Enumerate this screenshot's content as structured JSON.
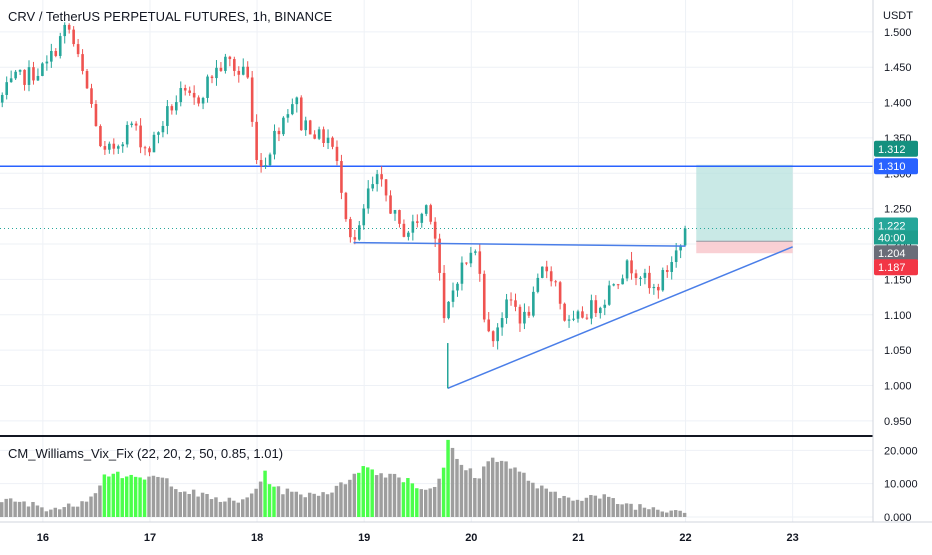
{
  "header": {
    "title": "CRV / TetherUS PERPETUAL FUTURES, 1h, BINANCE",
    "indicator": "CM_Williams_Vix_Fix (22, 20, 2, 50, 0.85, 1.01)"
  },
  "axis": {
    "currency": "USDT",
    "price_ticks": [
      "1.500",
      "1.450",
      "1.400",
      "1.350",
      "1.300",
      "1.250",
      "1.200",
      "1.150",
      "1.100",
      "1.050",
      "1.000",
      "0.950"
    ],
    "price_tick_values": [
      1.5,
      1.45,
      1.4,
      1.35,
      1.3,
      1.25,
      1.2,
      1.15,
      1.1,
      1.05,
      1.0,
      0.95
    ],
    "indicator_ticks": [
      "20.000",
      "10.000",
      "0.000"
    ],
    "indicator_tick_values": [
      20,
      10,
      0
    ],
    "day_ticks": [
      "16",
      "17",
      "18",
      "19",
      "20",
      "21",
      "22",
      "23"
    ],
    "day_tick_values": [
      16,
      17,
      18,
      19,
      20,
      21,
      22,
      23
    ]
  },
  "price_labels": {
    "target": "1.312",
    "resistance": "1.310",
    "last": "1.222",
    "countdown": "40:00",
    "entry": "1.204",
    "stop": "1.187"
  },
  "colors": {
    "up": "#26a69a",
    "down": "#ef5350",
    "resistance_line": "#2962ff",
    "trendline": "#4a7ee8",
    "target_zone": "#b2dfdb",
    "stop_zone": "#f8c8cc",
    "vix_normal": "#9e9e9e",
    "vix_spike": "#4cff4c"
  },
  "chart_data": [
    {
      "type": "candlestick",
      "title": "CRV / TetherUS PERPETUAL FUTURES, 1h, BINANCE",
      "x_unit": "day",
      "xlim": [
        15.6,
        23.75
      ],
      "ylim": [
        0.93,
        1.545
      ],
      "y_unit": "USDT",
      "last_price": 1.222,
      "anchors": [
        [
          15.6,
          1.4
        ],
        [
          15.75,
          1.43
        ],
        [
          15.9,
          1.44
        ],
        [
          16.05,
          1.45
        ],
        [
          16.15,
          1.48
        ],
        [
          16.25,
          1.51
        ],
        [
          16.33,
          1.47
        ],
        [
          16.45,
          1.41
        ],
        [
          16.52,
          1.37
        ],
        [
          16.57,
          1.32
        ],
        [
          16.7,
          1.34
        ],
        [
          16.85,
          1.37
        ],
        [
          17.0,
          1.33
        ],
        [
          17.1,
          1.36
        ],
        [
          17.2,
          1.39
        ],
        [
          17.3,
          1.41
        ],
        [
          17.45,
          1.4
        ],
        [
          17.6,
          1.44
        ],
        [
          17.75,
          1.46
        ],
        [
          17.85,
          1.44
        ],
        [
          17.92,
          1.46
        ],
        [
          17.95,
          1.4
        ],
        [
          18.0,
          1.34
        ],
        [
          18.05,
          1.31
        ],
        [
          18.1,
          1.32
        ],
        [
          18.2,
          1.36
        ],
        [
          18.3,
          1.39
        ],
        [
          18.38,
          1.41
        ],
        [
          18.42,
          1.37
        ],
        [
          18.5,
          1.37
        ],
        [
          18.6,
          1.35
        ],
        [
          18.7,
          1.35
        ],
        [
          18.75,
          1.32
        ],
        [
          18.8,
          1.29
        ],
        [
          18.88,
          1.22
        ],
        [
          18.95,
          1.2
        ],
        [
          19.05,
          1.27
        ],
        [
          19.15,
          1.29
        ],
        [
          19.25,
          1.26
        ],
        [
          19.35,
          1.22
        ],
        [
          19.45,
          1.22
        ],
        [
          19.55,
          1.24
        ],
        [
          19.62,
          1.26
        ],
        [
          19.7,
          1.2
        ],
        [
          19.73,
          1.15
        ],
        [
          19.76,
          1.08
        ],
        [
          19.82,
          1.12
        ],
        [
          19.9,
          1.16
        ],
        [
          20.0,
          1.18
        ],
        [
          20.05,
          1.19
        ],
        [
          20.1,
          1.17
        ],
        [
          20.15,
          1.09
        ],
        [
          20.2,
          1.06
        ],
        [
          20.3,
          1.1
        ],
        [
          20.4,
          1.12
        ],
        [
          20.5,
          1.09
        ],
        [
          20.6,
          1.12
        ],
        [
          20.7,
          1.17
        ],
        [
          20.8,
          1.15
        ],
        [
          20.88,
          1.1
        ],
        [
          20.95,
          1.08
        ],
        [
          21.05,
          1.1
        ],
        [
          21.15,
          1.11
        ],
        [
          21.25,
          1.12
        ],
        [
          21.35,
          1.15
        ],
        [
          21.5,
          1.17
        ],
        [
          21.6,
          1.16
        ],
        [
          21.7,
          1.13
        ],
        [
          21.8,
          1.15
        ],
        [
          21.9,
          1.18
        ],
        [
          21.98,
          1.2
        ],
        [
          22.03,
          1.222
        ]
      ],
      "series": [
        {
          "name": "Resistance",
          "kind": "horizontal_line",
          "y": 1.31
        },
        {
          "name": "Triangle upper",
          "kind": "trendline",
          "points": [
            [
              18.9,
              1.202
            ],
            [
              22.0,
              1.197
            ]
          ]
        },
        {
          "name": "Triangle lower",
          "kind": "trendline",
          "points": [
            [
              19.78,
              0.996
            ],
            [
              23.0,
              1.196
            ]
          ]
        },
        {
          "name": "Long position",
          "kind": "position",
          "x_range": [
            22.1,
            23.0
          ],
          "entry": 1.204,
          "target": 1.312,
          "stop": 1.187
        }
      ]
    },
    {
      "type": "bar",
      "title": "CM_Williams_Vix_Fix (22, 20, 2, 50, 0.85, 1.01)",
      "x_unit": "day",
      "ylim": [
        -1.5,
        24
      ],
      "anchors": [
        [
          15.6,
          5
        ],
        [
          15.8,
          4
        ],
        [
          16.0,
          3
        ],
        [
          16.2,
          2.5
        ],
        [
          16.35,
          5
        ],
        [
          16.45,
          7
        ],
        [
          16.55,
          12
        ],
        [
          16.65,
          14
        ],
        [
          16.75,
          12
        ],
        [
          16.85,
          11
        ],
        [
          17.0,
          12
        ],
        [
          17.15,
          11
        ],
        [
          17.3,
          8
        ],
        [
          17.5,
          6
        ],
        [
          17.7,
          5
        ],
        [
          17.8,
          4
        ],
        [
          17.9,
          6
        ],
        [
          18.0,
          10
        ],
        [
          18.05,
          13
        ],
        [
          18.15,
          9
        ],
        [
          18.3,
          7
        ],
        [
          18.5,
          7
        ],
        [
          18.7,
          8
        ],
        [
          18.8,
          10
        ],
        [
          18.9,
          14
        ],
        [
          19.0,
          15
        ],
        [
          19.1,
          13
        ],
        [
          19.25,
          13
        ],
        [
          19.4,
          11
        ],
        [
          19.55,
          8
        ],
        [
          19.65,
          10
        ],
        [
          19.72,
          14
        ],
        [
          19.76,
          23
        ],
        [
          19.85,
          17
        ],
        [
          19.95,
          14
        ],
        [
          20.05,
          12
        ],
        [
          20.15,
          17
        ],
        [
          20.25,
          18
        ],
        [
          20.35,
          15
        ],
        [
          20.5,
          12
        ],
        [
          20.6,
          9
        ],
        [
          20.8,
          6
        ],
        [
          21.0,
          6
        ],
        [
          21.2,
          6
        ],
        [
          21.4,
          4
        ],
        [
          21.6,
          3
        ],
        [
          21.8,
          2.5
        ],
        [
          22.0,
          2
        ]
      ],
      "spike_ranges": [
        [
          16.55,
          16.95
        ],
        [
          18.05,
          18.15
        ],
        [
          18.92,
          19.07
        ],
        [
          19.35,
          19.48
        ],
        [
          19.72,
          19.78
        ]
      ]
    }
  ]
}
